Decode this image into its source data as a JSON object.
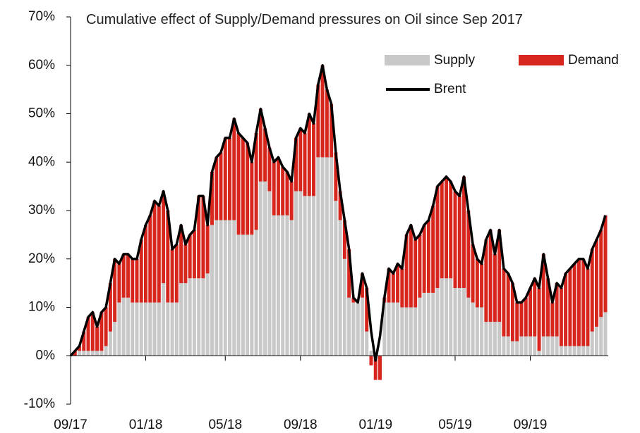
{
  "chart_data": {
    "type": "bar-line",
    "title": "Cumulative effect of Supply/Demand pressures on Oil since Sep 2017",
    "categories": [
      "09/17",
      null,
      null,
      null,
      null,
      null,
      null,
      null,
      null,
      null,
      null,
      null,
      null,
      null,
      null,
      null,
      null,
      "01/18",
      null,
      null,
      null,
      null,
      null,
      null,
      null,
      null,
      null,
      null,
      null,
      null,
      null,
      null,
      null,
      null,
      null,
      "05/18",
      null,
      null,
      null,
      null,
      null,
      null,
      null,
      null,
      null,
      null,
      null,
      null,
      null,
      null,
      null,
      null,
      "09/18",
      null,
      null,
      null,
      null,
      null,
      null,
      null,
      null,
      null,
      null,
      null,
      null,
      null,
      null,
      null,
      null,
      "01/19",
      null,
      null,
      null,
      null,
      null,
      null,
      null,
      null,
      null,
      null,
      null,
      null,
      null,
      null,
      null,
      null,
      null,
      "05/19",
      null,
      null,
      null,
      null,
      null,
      null,
      null,
      null,
      null,
      null,
      null,
      null,
      null,
      null,
      null,
      null,
      "09/19",
      null,
      null,
      null,
      null,
      null,
      null,
      null,
      null,
      null,
      null,
      null,
      null,
      null,
      null,
      null,
      null,
      null
    ],
    "series": [
      {
        "name": "Supply",
        "type": "bar",
        "color": "#c8c8c8",
        "values": [
          0,
          0,
          1,
          1,
          1,
          1,
          1,
          1,
          2,
          5,
          7,
          11,
          12,
          12,
          11,
          11,
          11,
          11,
          11,
          11,
          11,
          15,
          11,
          11,
          11,
          15,
          15,
          16,
          16,
          16,
          16,
          17,
          27,
          28,
          28,
          28,
          28,
          28,
          25,
          25,
          25,
          25,
          26,
          36,
          36,
          34,
          29,
          29,
          29,
          29,
          28,
          34,
          34,
          33,
          33,
          33,
          41,
          41,
          41,
          41,
          32,
          28,
          20,
          12,
          11,
          11,
          12,
          5,
          1,
          0,
          0,
          11,
          11,
          11,
          11,
          10,
          10,
          10,
          10,
          12,
          13,
          13,
          13,
          14,
          16,
          16,
          16,
          14,
          14,
          14,
          12,
          11,
          10,
          10,
          7,
          7,
          7,
          7,
          4,
          4,
          3,
          3,
          4,
          4,
          4,
          4,
          1,
          4,
          4,
          4,
          4,
          2,
          2,
          2,
          2,
          2,
          2,
          2,
          5,
          6,
          8,
          9
        ]
      },
      {
        "name": "Demand",
        "type": "bar",
        "color": "#d7261e",
        "values": [
          0,
          1,
          1,
          4,
          7,
          8,
          5,
          8,
          8,
          10,
          13,
          8,
          9,
          9,
          9,
          9,
          13,
          16,
          18,
          21,
          20,
          19,
          19,
          11,
          12,
          12,
          8,
          9,
          10,
          17,
          17,
          10,
          11,
          13,
          14,
          17,
          17,
          21,
          21,
          20,
          19,
          15,
          20,
          15,
          11,
          9,
          11,
          12,
          10,
          9,
          8,
          11,
          13,
          13,
          17,
          15,
          15,
          19,
          14,
          11,
          10,
          6,
          8,
          10,
          1,
          0,
          5,
          9,
          -2,
          -5,
          -5,
          1,
          7,
          6,
          8,
          8,
          15,
          17,
          14,
          13,
          14,
          15,
          18,
          21,
          20,
          21,
          20,
          20,
          19,
          23,
          18,
          12,
          10,
          9,
          17,
          19,
          14,
          19,
          14,
          13,
          12,
          8,
          7,
          8,
          10,
          12,
          13,
          17,
          12,
          7,
          11,
          12,
          15,
          16,
          17,
          18,
          18,
          16,
          17,
          18,
          18,
          20
        ]
      },
      {
        "name": "Brent",
        "type": "line",
        "color": "#000000",
        "values": [
          0,
          1,
          2,
          5,
          8,
          9,
          6,
          9,
          10,
          15,
          20,
          19,
          21,
          21,
          20,
          20,
          24,
          27,
          29,
          32,
          31,
          34,
          30,
          22,
          23,
          27,
          23,
          25,
          26,
          33,
          33,
          27,
          38,
          41,
          42,
          45,
          45,
          49,
          46,
          45,
          44,
          40,
          46,
          51,
          47,
          43,
          40,
          41,
          39,
          38,
          36,
          45,
          47,
          46,
          50,
          48,
          56,
          60,
          55,
          52,
          42,
          34,
          28,
          22,
          12,
          11,
          17,
          14,
          5,
          -1,
          4,
          12,
          18,
          17,
          19,
          18,
          25,
          27,
          24,
          25,
          27,
          28,
          31,
          35,
          36,
          37,
          36,
          34,
          33,
          37,
          30,
          23,
          20,
          19,
          24,
          26,
          21,
          26,
          18,
          17,
          15,
          11,
          11,
          12,
          14,
          16,
          14,
          21,
          16,
          11,
          15,
          14,
          17,
          18,
          19,
          20,
          20,
          18,
          22,
          24,
          26,
          29
        ]
      }
    ],
    "ylim": [
      -10,
      70
    ],
    "yticks": [
      {
        "value": -10,
        "label": "-10%"
      },
      {
        "value": 0,
        "label": "0%"
      },
      {
        "value": 10,
        "label": "10%"
      },
      {
        "value": 20,
        "label": "20%"
      },
      {
        "value": 30,
        "label": "30%"
      },
      {
        "value": 40,
        "label": "40%"
      },
      {
        "value": 50,
        "label": "50%"
      },
      {
        "value": 60,
        "label": "60%"
      },
      {
        "value": 70,
        "label": "70%"
      }
    ]
  }
}
